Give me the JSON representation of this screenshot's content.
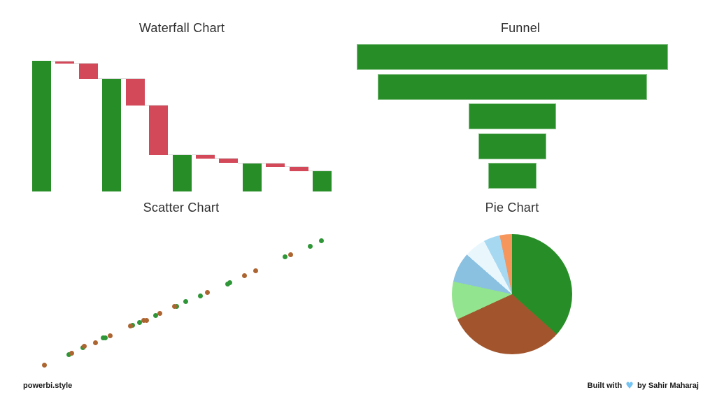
{
  "page": {
    "background": "#ffffff",
    "footer": {
      "left_brand": "powerbi.style",
      "right_prefix": "Built with",
      "right_suffix": "by Sahir Maharaj",
      "heart_icon": "blue-heart-icon",
      "heart_color": "#74C3F3",
      "text_color": "#1b1b1b"
    }
  },
  "chart_data": [
    {
      "type": "waterfall",
      "title": "Waterfall Chart",
      "xlabel": "",
      "ylabel": "",
      "ylim": [
        0,
        100
      ],
      "grid": false,
      "legend": "none",
      "colors": {
        "decrease": "#D4495A",
        "total": "#278E27",
        "connector": "#D9D9D9"
      },
      "bars": [
        {
          "kind": "total",
          "start": 0,
          "end": 100
        },
        {
          "kind": "decrease",
          "start": 100,
          "end": 98
        },
        {
          "kind": "decrease",
          "start": 98,
          "end": 86
        },
        {
          "kind": "total",
          "start": 0,
          "end": 86
        },
        {
          "kind": "decrease",
          "start": 86,
          "end": 66
        },
        {
          "kind": "decrease",
          "start": 66,
          "end": 28
        },
        {
          "kind": "total",
          "start": 0,
          "end": 28
        },
        {
          "kind": "decrease",
          "start": 28,
          "end": 25
        },
        {
          "kind": "decrease",
          "start": 25,
          "end": 22
        },
        {
          "kind": "total",
          "start": 0,
          "end": 21.5
        },
        {
          "kind": "decrease",
          "start": 21.5,
          "end": 18.5
        },
        {
          "kind": "decrease",
          "start": 18.5,
          "end": 15.5
        },
        {
          "kind": "total",
          "start": 0,
          "end": 15.5
        }
      ]
    },
    {
      "type": "funnel",
      "title": "Funnel",
      "xlabel": "",
      "ylabel": "",
      "grid": false,
      "legend": "none",
      "color": "#278E27",
      "stages": [
        {
          "value": 100
        },
        {
          "value": 86.5
        },
        {
          "value": 28.1
        },
        {
          "value": 21.8
        },
        {
          "value": 15.7
        }
      ]
    },
    {
      "type": "scatter",
      "title": "Scatter Chart",
      "xlabel": "",
      "ylabel": "",
      "xlim": [
        0,
        100
      ],
      "ylim": [
        0,
        100
      ],
      "grid": false,
      "legend": "none",
      "series": [
        {
          "name": "green-series",
          "color": "#2F9638",
          "points": [
            [
              11.5,
              9.7
            ],
            [
              16.2,
              14.6
            ],
            [
              23.1,
              22.2
            ],
            [
              24.0,
              22.7
            ],
            [
              33.1,
              31.9
            ],
            [
              35.5,
              34.1
            ],
            [
              41.0,
              39.5
            ],
            [
              48.3,
              47.0
            ],
            [
              51.4,
              50.8
            ],
            [
              56.2,
              55.1
            ],
            [
              65.5,
              64.3
            ],
            [
              66.4,
              65.4
            ],
            [
              85.2,
              84.9
            ],
            [
              93.6,
              93.5
            ],
            [
              97.6,
              97.3
            ]
          ]
        },
        {
          "name": "brown-series",
          "color": "#AC6531",
          "points": [
            [
              3.3,
              1.6
            ],
            [
              12.6,
              10.8
            ],
            [
              16.7,
              15.7
            ],
            [
              20.5,
              18.9
            ],
            [
              25.5,
              23.8
            ],
            [
              32.6,
              31.4
            ],
            [
              37.1,
              35.7
            ],
            [
              37.9,
              36.2
            ],
            [
              42.6,
              41.6
            ],
            [
              47.4,
              46.5
            ],
            [
              58.6,
              57.3
            ],
            [
              71.4,
              70.8
            ],
            [
              75.0,
              74.1
            ],
            [
              87.1,
              87.0
            ]
          ]
        }
      ]
    },
    {
      "type": "pie",
      "title": "Pie Chart",
      "legend": "none",
      "start_angle_deg": 0,
      "slices": [
        {
          "value": 100,
          "color": "#278E27"
        },
        {
          "value": 86,
          "color": "#A2552D"
        },
        {
          "value": 28,
          "color": "#92E58E"
        },
        {
          "value": 22,
          "color": "#8AC0E0"
        },
        {
          "value": 16,
          "color": "#E9F7FD"
        },
        {
          "value": 12,
          "color": "#A6D8F2"
        },
        {
          "value": 9,
          "color": "#F6955C"
        }
      ]
    }
  ]
}
